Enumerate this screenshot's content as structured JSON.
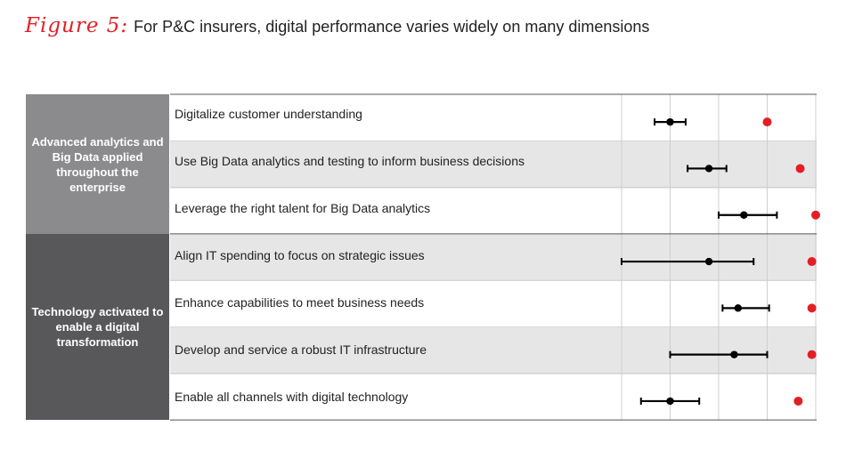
{
  "figure": {
    "label": "Figure 5:",
    "title": "For P&C insurers, digital performance varies widely on many dimensions"
  },
  "groups": [
    {
      "label": "Advanced analytics and Big Data applied throughout the enterprise"
    },
    {
      "label": "Technology activated to enable a digital transformation"
    }
  ],
  "colors": {
    "range": "#000000",
    "highlight": "#e31f26",
    "group_light": "#8b8b8d",
    "group_dark": "#58585a",
    "row_shade": "#e6e6e7"
  },
  "chart_data": {
    "type": "dot-range",
    "x_range": [
      0,
      100
    ],
    "xlabel": "",
    "ylabel": "",
    "grid": true,
    "categories": [
      "Digitalize customer understanding",
      "Use Big Data analytics and testing to inform business decisions",
      "Leverage the right talent for Big Data analytics",
      "Align IT spending to focus on strategic issues",
      "Enhance capabilities to meet business needs",
      "Develop and service a robust IT infrastructure",
      "Enable all channels with digital technology"
    ],
    "series": [
      {
        "values": [
          {
            "low": 17,
            "mid": 25,
            "high": 33
          },
          {
            "low": 34,
            "mid": 45,
            "high": 54
          },
          {
            "low": 50,
            "mid": 63,
            "high": 80
          },
          {
            "low": 0,
            "mid": 45,
            "high": 68
          },
          {
            "low": 52,
            "mid": 60,
            "high": 76
          },
          {
            "low": 25,
            "mid": 58,
            "high": 75
          },
          {
            "low": 10,
            "mid": 25,
            "high": 40
          }
        ]
      },
      {
        "values": [
          75,
          92,
          100,
          98,
          98,
          98,
          91
        ]
      }
    ]
  }
}
